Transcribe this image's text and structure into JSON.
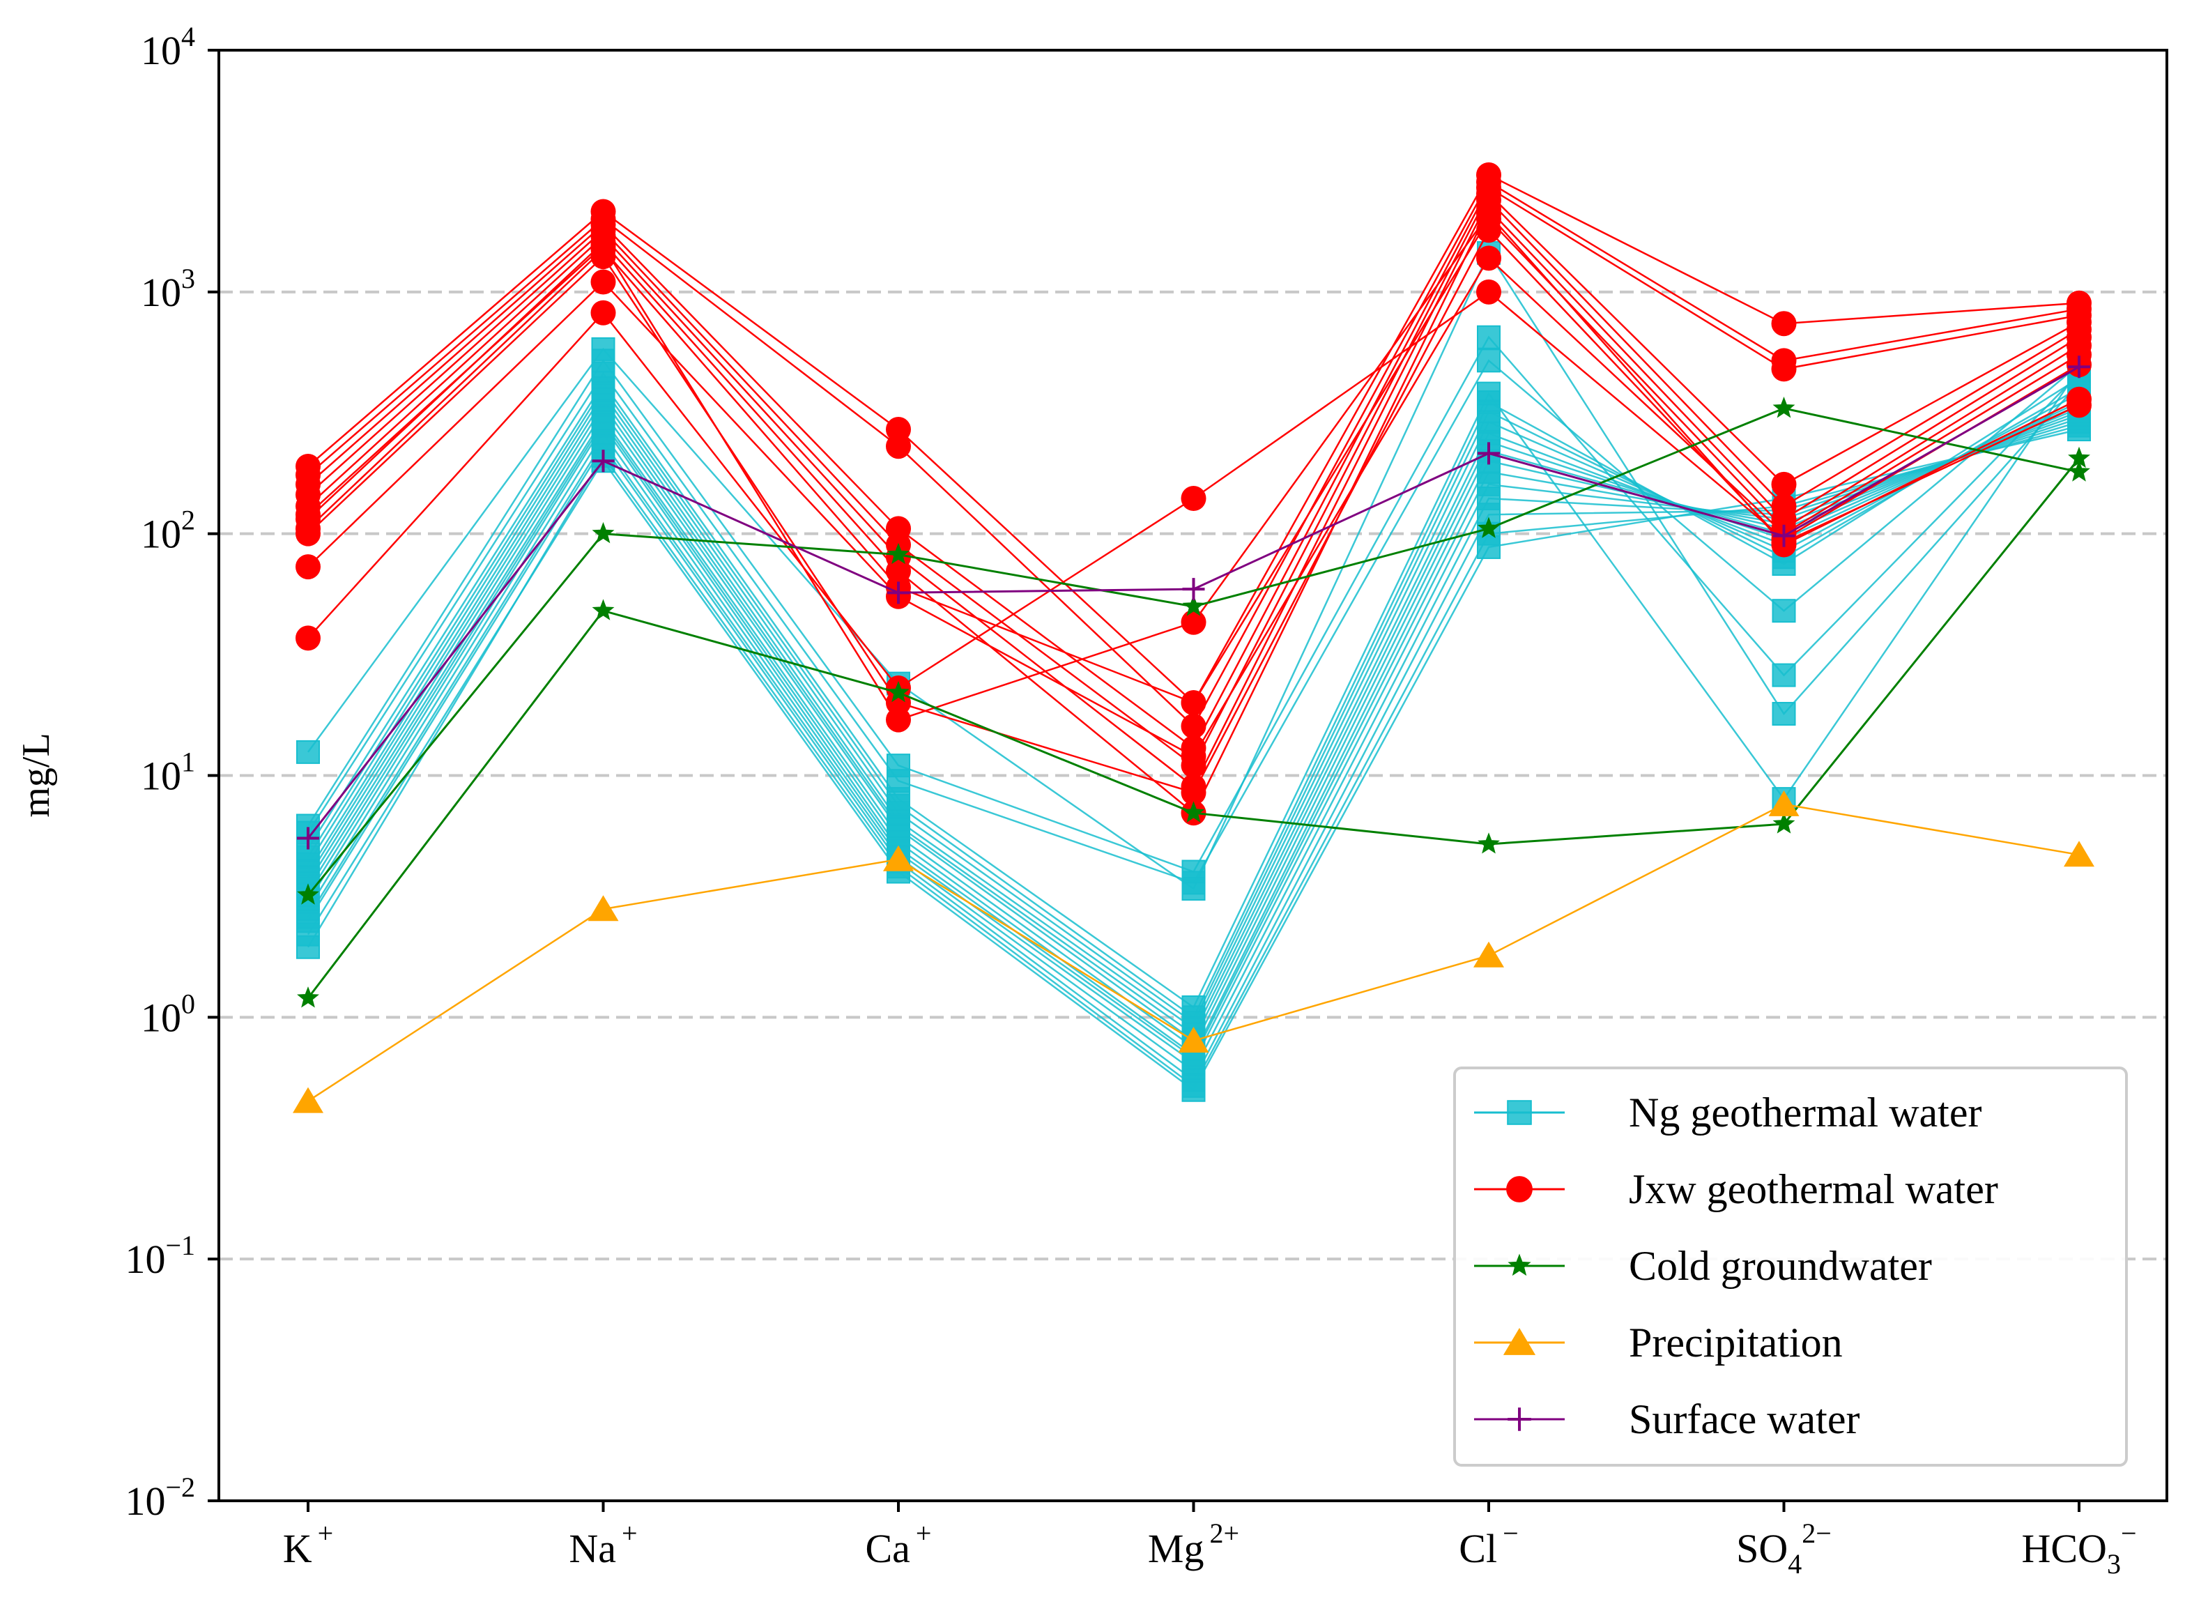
{
  "chart_data": {
    "type": "line",
    "yscale": "log",
    "ylabel": "mg/L",
    "ylim": [
      0.01,
      10000
    ],
    "categories": [
      "K",
      "Na",
      "Ca",
      "Mg",
      "Cl",
      "SO4",
      "HCO3"
    ],
    "x_tick_labels": [
      {
        "base": "K",
        "sub": "",
        "sup": "+"
      },
      {
        "base": "Na",
        "sub": "",
        "sup": "+"
      },
      {
        "base": "Ca",
        "sub": "",
        "sup": "+"
      },
      {
        "base": "Mg",
        "sub": "",
        "sup": "2+"
      },
      {
        "base": "Cl",
        "sub": "",
        "sup": "−"
      },
      {
        "base": "SO",
        "sub": "4",
        "sup": "2−"
      },
      {
        "base": "HCO",
        "sub": "3",
        "sup": "−"
      }
    ],
    "y_ticks": [
      {
        "value": 0.01,
        "base": "10",
        "exp": "−2"
      },
      {
        "value": 0.1,
        "base": "10",
        "exp": "−1"
      },
      {
        "value": 1,
        "base": "10",
        "exp": "0"
      },
      {
        "value": 10,
        "base": "10",
        "exp": "1"
      },
      {
        "value": 100,
        "base": "10",
        "exp": "2"
      },
      {
        "value": 1000,
        "base": "10",
        "exp": "3"
      },
      {
        "value": 10000,
        "base": "10",
        "exp": "4"
      }
    ],
    "grid": "horizontal dashed",
    "legend_position": "lower-right",
    "groups": [
      {
        "name": "Ng geothermal water",
        "color": "#17becf",
        "marker": "square",
        "series": [
          [
            12.5,
            580,
            24,
            3.4,
            1450,
            18,
            420
          ],
          [
            6.2,
            520,
            11,
            4.0,
            650,
            26,
            460
          ],
          [
            5.8,
            460,
            9.5,
            3.6,
            520,
            48,
            500
          ],
          [
            5.0,
            420,
            8.0,
            1.1,
            380,
            8.0,
            480
          ],
          [
            4.6,
            400,
            7.5,
            1.0,
            350,
            75,
            440
          ],
          [
            4.3,
            380,
            7.0,
            0.95,
            320,
            80,
            400
          ],
          [
            4.0,
            360,
            6.5,
            0.9,
            290,
            85,
            380
          ],
          [
            3.8,
            340,
            6.2,
            0.85,
            260,
            90,
            360
          ],
          [
            3.6,
            320,
            6.0,
            0.8,
            240,
            95,
            350
          ],
          [
            3.4,
            300,
            5.6,
            0.75,
            220,
            100,
            340
          ],
          [
            3.2,
            290,
            5.3,
            0.7,
            200,
            105,
            330
          ],
          [
            3.0,
            280,
            5.0,
            0.68,
            180,
            110,
            320
          ],
          [
            2.8,
            260,
            4.8,
            0.65,
            160,
            115,
            310
          ],
          [
            2.6,
            240,
            4.6,
            0.6,
            140,
            120,
            300
          ],
          [
            2.5,
            230,
            4.4,
            0.55,
            120,
            125,
            290
          ],
          [
            1.95,
            210,
            4.2,
            0.52,
            100,
            130,
            280
          ],
          [
            2.2,
            200,
            4.0,
            0.5,
            88,
            140,
            270
          ]
        ]
      },
      {
        "name": "Jxw geothermal water",
        "color": "#ff0000",
        "marker": "circle",
        "series": [
          [
            190,
            2150,
            270,
            20,
            3050,
            740,
            900
          ],
          [
            175,
            2000,
            230,
            16,
            2850,
            520,
            850
          ],
          [
            160,
            1900,
            105,
            13,
            2700,
            480,
            800
          ],
          [
            145,
            1800,
            90,
            11,
            2550,
            160,
            750
          ],
          [
            130,
            1700,
            80,
            9,
            2400,
            130,
            700
          ],
          [
            115,
            1600,
            70,
            7,
            2200,
            115,
            650
          ],
          [
            105,
            1500,
            60,
            20,
            2000,
            105,
            600
          ],
          [
            73,
            1100,
            55,
            12,
            1380,
            100,
            550
          ],
          [
            37,
            820,
            23,
            140,
            1000,
            95,
            500
          ],
          [
            120,
            1550,
            17,
            43,
            2100,
            90,
            360
          ],
          [
            100,
            1400,
            20,
            8.5,
            1800,
            92,
            340
          ]
        ]
      },
      {
        "name": "Cold groundwater",
        "color": "#008000",
        "marker": "star",
        "series": [
          [
            3.2,
            100,
            82,
            50,
            105,
            330,
            180
          ],
          [
            1.2,
            48,
            22,
            7.0,
            5.2,
            6.3,
            205
          ]
        ]
      },
      {
        "name": "Precipitation",
        "color": "#ffa500",
        "marker": "triangle",
        "series": [
          [
            0.45,
            2.8,
            4.5,
            0.8,
            1.8,
            7.6,
            4.7
          ]
        ]
      },
      {
        "name": "Surface water",
        "color": "#800080",
        "marker": "plus",
        "series": [
          [
            5.5,
            200,
            57,
            59,
            215,
            98,
            490
          ]
        ]
      }
    ]
  }
}
